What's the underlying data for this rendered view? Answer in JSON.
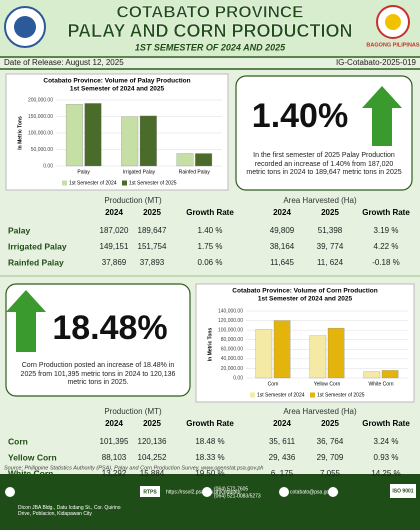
{
  "header": {
    "title": "COTABATO PROVINCE",
    "title2": "PALAY AND CORN PRODUCTION",
    "subtitle": "1ST SEMESTER OF 2024 AND 2025",
    "logo_text": "BAGONG PILIPINAS"
  },
  "release": {
    "date": "Date of Release: August 12, 2025",
    "code": "IG-Cotabato-2025-019"
  },
  "chart_data": [
    {
      "type": "bar",
      "title": "Cotabato Province: Volume of Palay Production",
      "subtitle": "1st Semester of 2024 and 2025",
      "y_label": "In Metric Tons",
      "categories": [
        "Palay",
        "Irrigated Palay",
        "Rainfed Palay"
      ],
      "series": [
        {
          "name": "1st Semester of 2024",
          "color": "#c6dfa4",
          "values": [
            187020,
            149151,
            37869
          ]
        },
        {
          "name": "1st Semester of 2025",
          "color": "#4b6b2b",
          "values": [
            189647,
            151754,
            37893
          ]
        }
      ],
      "ylim": [
        0,
        200000
      ],
      "yticks": [
        {
          "value": 0,
          "label": "0.00"
        },
        {
          "value": 50000,
          "label": "50,000.00"
        },
        {
          "value": 100000,
          "label": "100,000.00"
        },
        {
          "value": 150000,
          "label": "150,000.00"
        },
        {
          "value": 200000,
          "label": "200,000.00"
        }
      ],
      "grid": true,
      "legend": "bottom"
    },
    {
      "type": "bar",
      "title": "Cotabato Province: Volume of Corn Production",
      "subtitle": "1st Semester of 2024 and 2025",
      "y_label": "In Metric Tons",
      "categories": [
        "Corn",
        "Yellow Corn",
        "White Corn"
      ],
      "series": [
        {
          "name": "1st Semester of 2024",
          "color": "#f4eaa6",
          "values": [
            101395,
            88103,
            13292
          ]
        },
        {
          "name": "1st Semester of 2025",
          "color": "#e3b40c",
          "values": [
            120136,
            104252,
            15884
          ]
        }
      ],
      "ylim": [
        0,
        140000
      ],
      "yticks": [
        {
          "value": 0,
          "label": "0.00"
        },
        {
          "value": 20000,
          "label": "20,000.00"
        },
        {
          "value": 40000,
          "label": "40,000.00"
        },
        {
          "value": 60000,
          "label": "60,000.00"
        },
        {
          "value": 80000,
          "label": "80,000.00"
        },
        {
          "value": 100000,
          "label": "100,000.00"
        },
        {
          "value": 120000,
          "label": "120,000.00"
        },
        {
          "value": 140000,
          "label": "140,000.00"
        }
      ],
      "grid": true,
      "legend": "bottom"
    }
  ],
  "palay_highlight": {
    "value": "1.40%",
    "text": "In the first semester of 2025 Palay Production recorded an increase of 1.40% from 187,020 metric tons in 2024 to 189,647 metric tons in 2025"
  },
  "palay_table": {
    "group_headers": [
      "Production (MT)",
      "Area Harvested (Ha)"
    ],
    "columns": [
      "2024",
      "2025",
      "Growth Rate",
      "2024",
      "2025",
      "Growth Rate"
    ],
    "rows": [
      [
        "Palay",
        "187,020",
        "189,647",
        "1.40 %",
        "49,809",
        "51,398",
        "3.19 %"
      ],
      [
        "Irrigated Palay",
        "149,151",
        "151,754",
        "1.75 %",
        "38,164",
        "39, 774",
        "4.22 %"
      ],
      [
        "Rainfed Palay",
        "37,869",
        "37,893",
        "0.06 %",
        "11,645",
        "11, 624",
        "-0.18 %"
      ]
    ]
  },
  "corn_highlight": {
    "value": "18.48%",
    "text": "Corn Production posted an increase of 18.48% in 2025 from 101,395 metric tons in 2024 to 120,136 metric tons in 2025."
  },
  "corn_table": {
    "group_headers": [
      "Production (MT)",
      "Area Harvested (Ha)"
    ],
    "columns": [
      "2024",
      "2025",
      "Growth Rate",
      "2024",
      "2025",
      "Growth Rate"
    ],
    "rows": [
      [
        "Corn",
        "101,395",
        "120,136",
        "18.48 %",
        "35, 611",
        "36, 764",
        "3.24 %"
      ],
      [
        "Yellow Corn",
        "88,103",
        "104,252",
        "18.33 %",
        "29, 436",
        "29, 709",
        "0.93 %"
      ],
      [
        "White Corn",
        "13,292",
        "15,884",
        "19.50 %",
        "6, 175",
        "7,055",
        "14.25 %"
      ]
    ]
  },
  "source": "Source: Philippine Statistics Authority (PSA), Palay and Corn Production Survey, www.openstat.psa.gov.ph",
  "footer": {
    "address": "Dicon JBA Bldg., Datu Icdang St., Cor. Quirino Drive, Poblacion, Kidapawan City",
    "rtps": "RTPS",
    "website": "https://rssol2.psa.gov.ph/cotabato",
    "phone1": "(064) 572-7605",
    "phone2": "(064) 521-0083/5273",
    "email": "cotabato@psa.gov.ph",
    "iso": "ISO 9001"
  }
}
